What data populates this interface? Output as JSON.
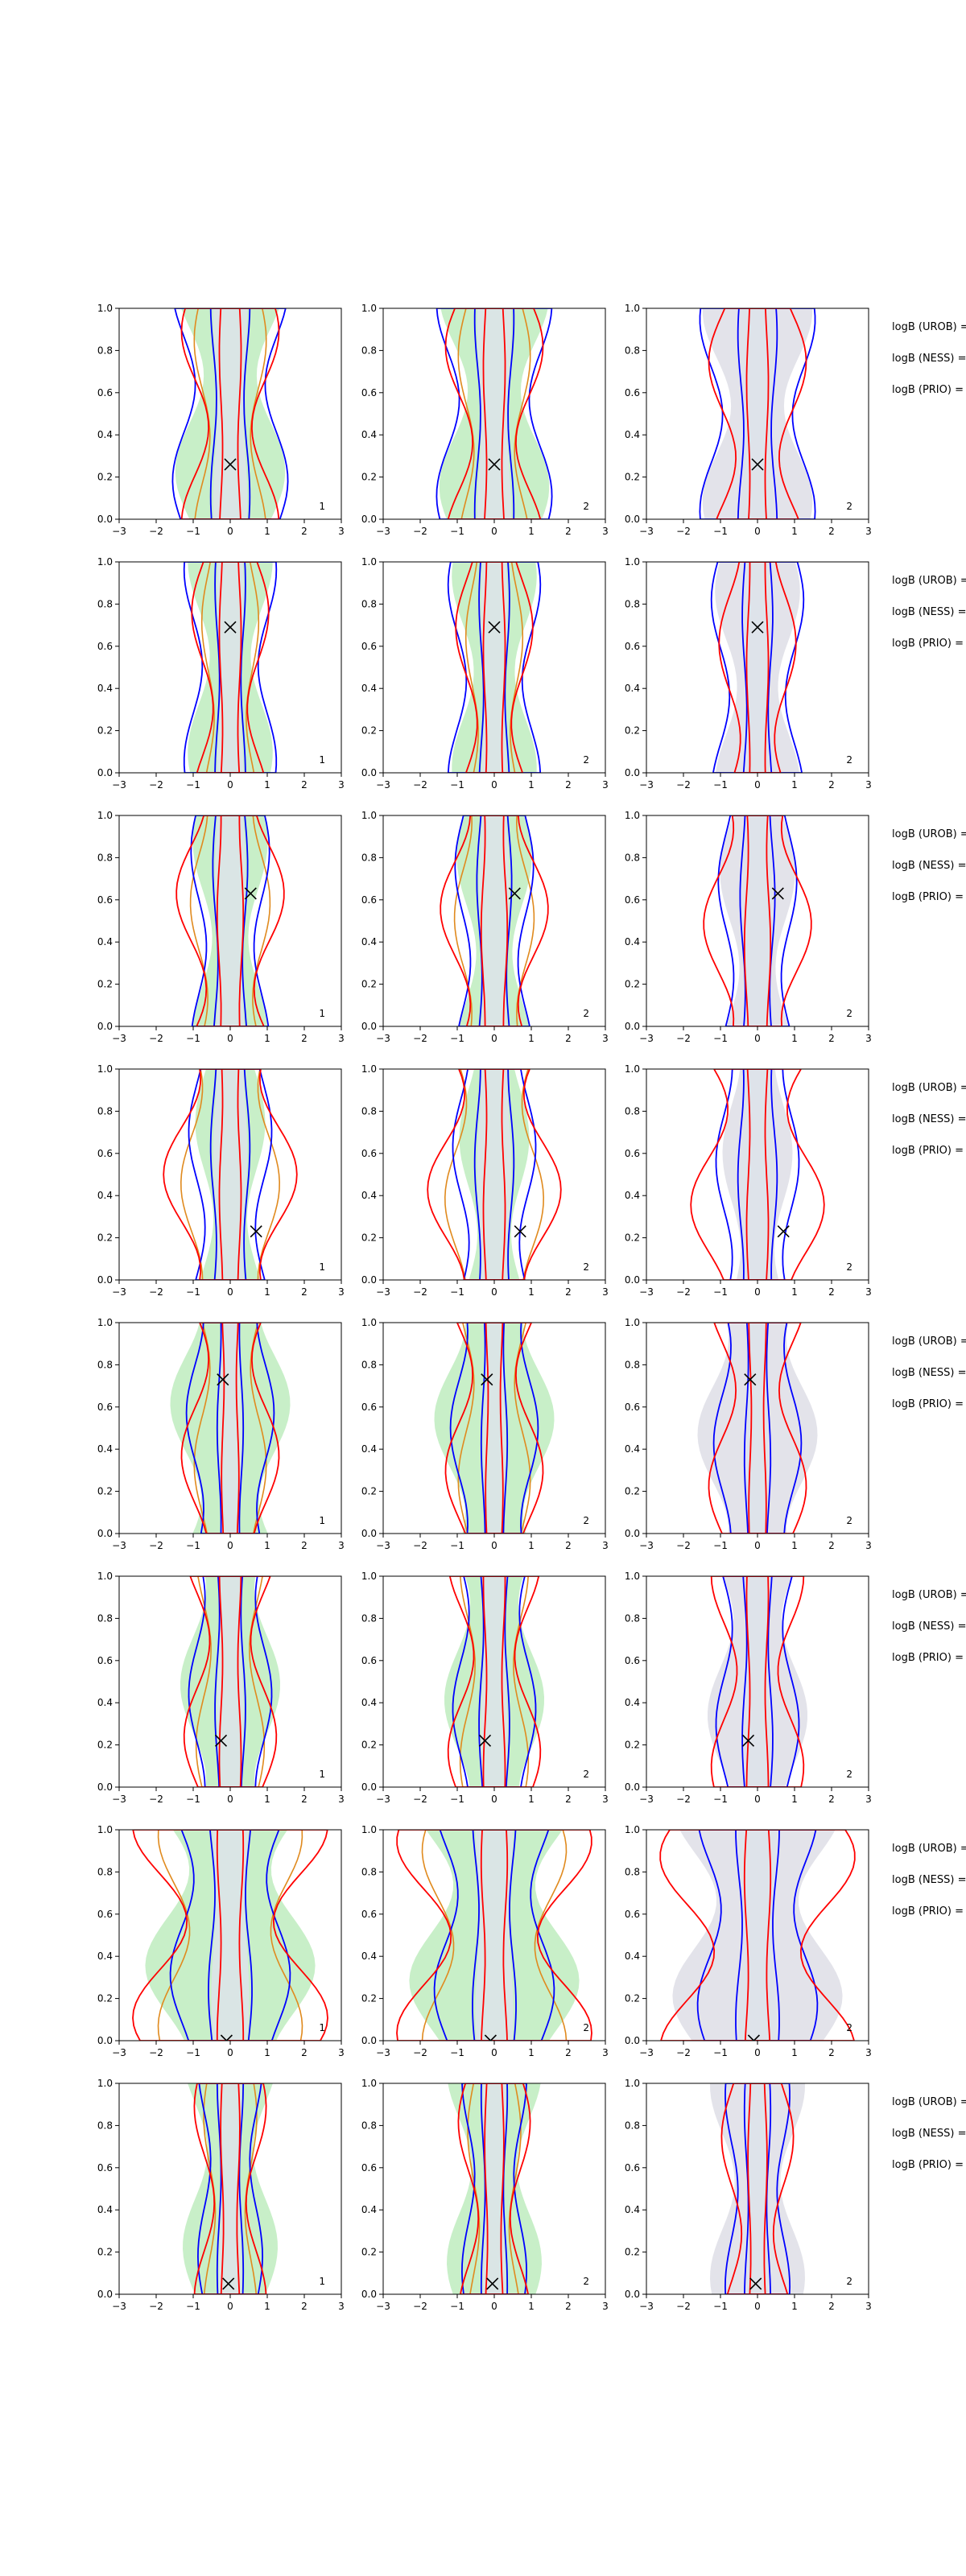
{
  "chart_data": {
    "type": "density-contour-grid",
    "description_free": true,
    "grid": {
      "rows": 8,
      "cols": 3
    },
    "xlim": [
      -3,
      3
    ],
    "ylim": [
      0.0,
      1.0
    ],
    "xticks": [
      "−3",
      "−2",
      "−1",
      "0",
      "1",
      "2",
      "3"
    ],
    "yticks": [
      "0.0",
      "0.2",
      "0.4",
      "0.6",
      "0.8",
      "1.0"
    ],
    "panel_corner_labels": [
      "1",
      "2",
      "2"
    ],
    "side_text": [
      "logB (UROB) =",
      "logB (NESS) =",
      "logB (PRIO) ="
    ],
    "colors": {
      "fill_col1": "#c8efc8",
      "fill_col2": "#c8efc8",
      "fill_col3": "#e3e3ea",
      "inner_fill": "#dde3ea",
      "blue": "#0000ff",
      "red": "#ff0000",
      "orange": "#e08a1e"
    },
    "rows": [
      {
        "marker": [
          0.0,
          0.26
        ],
        "widths": {
          "outer": 1.25,
          "green": 1.1,
          "red": 0.95,
          "blue_in": 0.45,
          "red_in": 0.25
        }
      },
      {
        "marker": [
          0.0,
          0.69
        ],
        "widths": {
          "outer": 1.0,
          "green": 0.85,
          "red": 0.75,
          "blue_in": 0.35,
          "red_in": 0.25
        }
      },
      {
        "marker": [
          0.55,
          0.63
        ],
        "widths": {
          "outer": 0.85,
          "green": 0.75,
          "red": 1.05,
          "blue_in": 0.4,
          "red_in": 0.3
        }
      },
      {
        "marker": [
          0.7,
          0.23
        ],
        "widths": {
          "outer": 0.9,
          "green": 0.7,
          "red": 1.3,
          "blue_in": 0.45,
          "red_in": 0.25
        }
      },
      {
        "marker": [
          -0.2,
          0.73
        ],
        "widths": {
          "outer": 0.95,
          "green": 1.2,
          "red": 0.95,
          "blue_in": 0.3,
          "red_in": 0.2
        }
      },
      {
        "marker": [
          -0.25,
          0.22
        ],
        "widths": {
          "outer": 0.9,
          "green": 1.0,
          "red": 0.9,
          "blue_in": 0.35,
          "red_in": 0.25
        }
      },
      {
        "marker": [
          -0.1,
          0.0
        ],
        "widths": {
          "outer": 1.3,
          "green": 1.7,
          "red": 1.9,
          "blue_in": 0.5,
          "red_in": 0.3
        }
      },
      {
        "marker": [
          -0.05,
          0.05
        ],
        "widths": {
          "outer": 0.7,
          "green": 0.95,
          "red": 0.7,
          "blue_in": 0.3,
          "red_in": 0.22
        }
      }
    ]
  }
}
